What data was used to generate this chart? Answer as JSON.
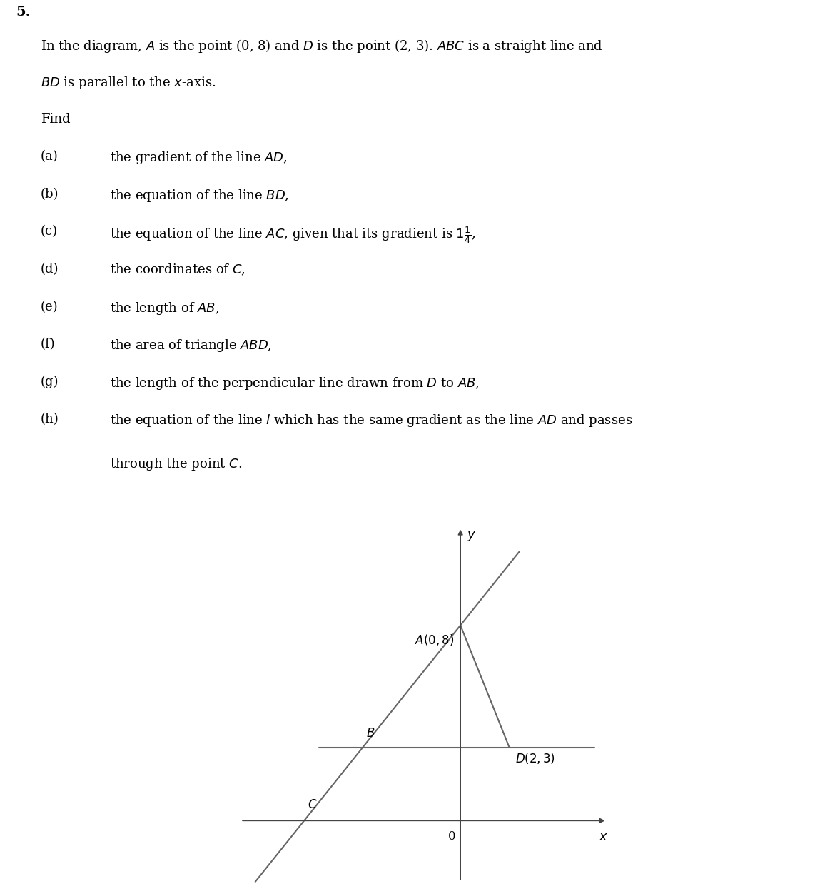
{
  "title_number": "5.",
  "A": [
    0,
    8
  ],
  "D": [
    2,
    3
  ],
  "B": [
    -4,
    3
  ],
  "C": [
    -6.4,
    0
  ],
  "gradient_AC": 1.25,
  "y_axis_range": [
    -3,
    12
  ],
  "x_axis_range": [
    -9,
    6
  ],
  "line_color": "#666666",
  "axis_color": "#444444",
  "text_color": "#000000",
  "background_color": "#ffffff",
  "font_size_text": 13,
  "font_size_label": 12
}
